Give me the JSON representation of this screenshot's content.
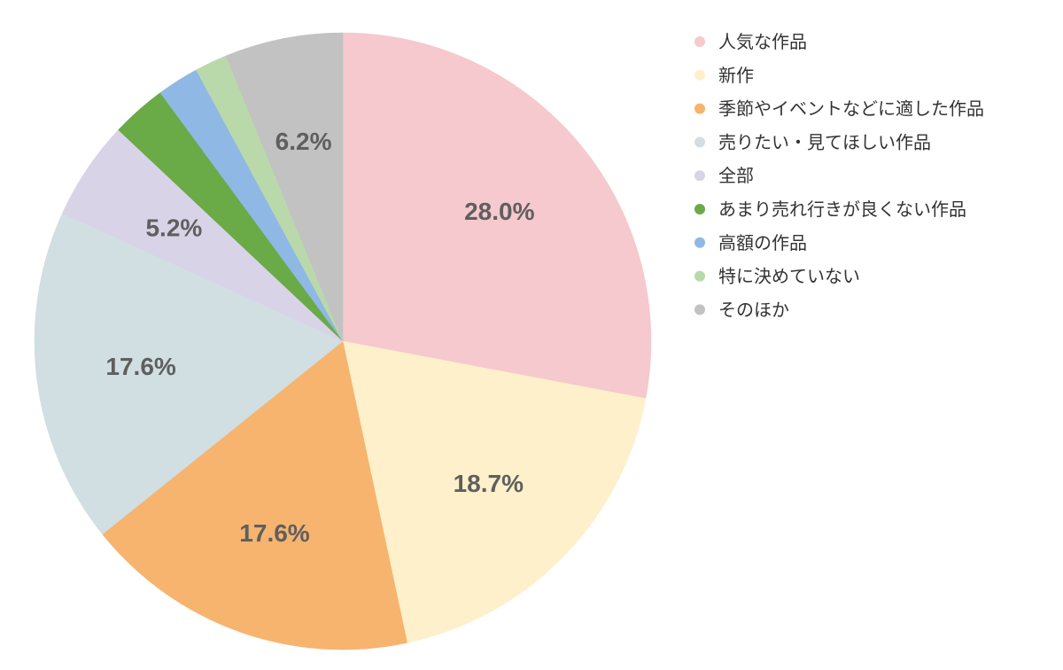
{
  "chart_data": {
    "type": "pie",
    "series": [
      {
        "values": [
          28.0,
          18.7,
          17.6,
          17.6,
          5.2,
          2.9,
          2.2,
          1.7,
          6.2
        ]
      }
    ],
    "categories": [
      "人気な作品",
      "新作",
      "季節やイベントなどに適した作品",
      "売りたい・見てほしい作品",
      "全部",
      "あまり売れ行きが良くない作品",
      "高額の作品",
      "特に決めていない",
      "そのほか"
    ],
    "values": [
      28.0,
      18.7,
      17.6,
      17.6,
      5.2,
      2.9,
      2.2,
      1.7,
      6.2
    ],
    "data_labels": [
      "28.0%",
      "18.7%",
      "17.6%",
      "17.6%",
      "5.2%",
      "",
      "",
      "",
      "6.2%"
    ],
    "colors": [
      "#f5c9cd",
      "#fdf0cb",
      "#f6b46e",
      "#d1dee2",
      "#d9d3e8",
      "#6aaa47",
      "#8fb8e4",
      "#bad9aa",
      "#c2c2c2"
    ],
    "legend_position": "right",
    "start_angle": "12 o'clock",
    "direction": "clockwise",
    "title": ""
  }
}
